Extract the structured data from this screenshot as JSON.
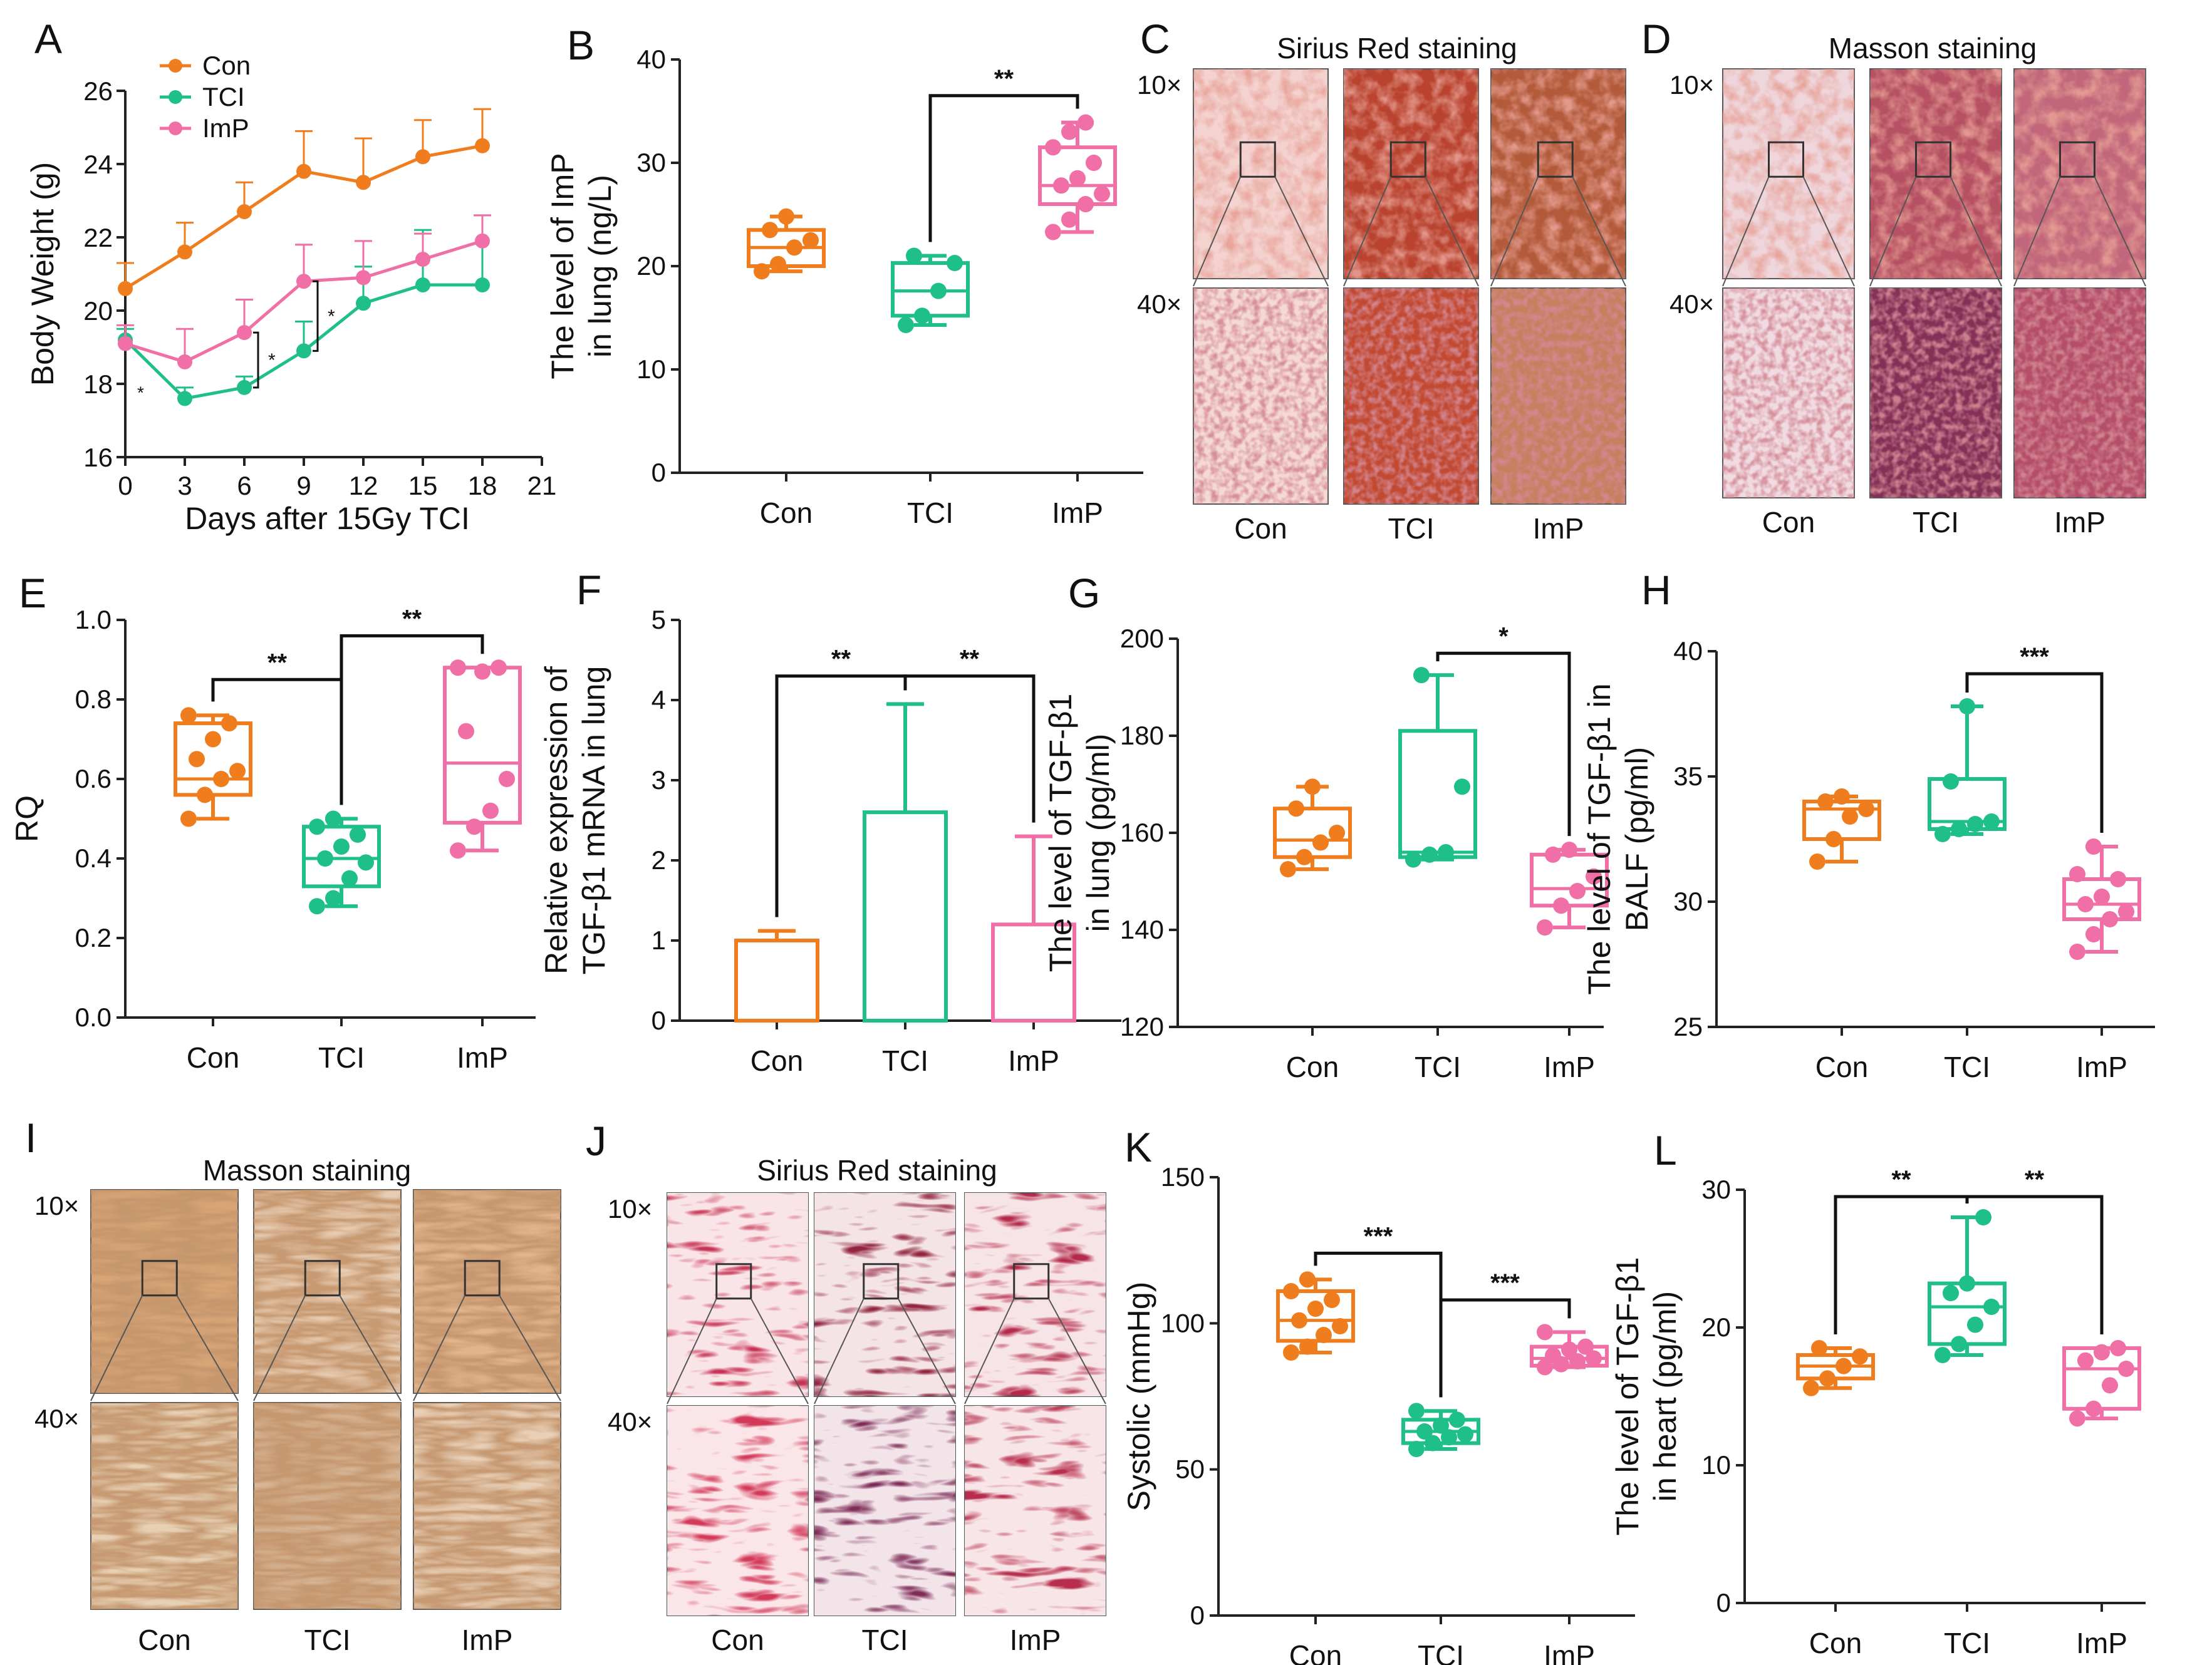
{
  "colors": {
    "Con": "#f07d1d",
    "TCI": "#1fbf89",
    "ImP": "#f06fa6",
    "axis": "#222222"
  },
  "chart_data": [
    {
      "panel": "A",
      "type": "line",
      "xlabel": "Days after 15Gy TCI",
      "ylabel": "Body Weight (g)",
      "xlim": [
        0,
        21
      ],
      "ylim": [
        16,
        26
      ],
      "xticks": [
        0,
        3,
        6,
        9,
        12,
        15,
        18,
        21
      ],
      "yticks": [
        16,
        18,
        20,
        22,
        24,
        26
      ],
      "legend": "top-left",
      "series": [
        {
          "name": "Con",
          "x": [
            0,
            3,
            6,
            9,
            12,
            15,
            18
          ],
          "y": [
            20.6,
            21.6,
            22.7,
            23.8,
            23.5,
            24.2,
            24.5
          ],
          "err": [
            0.7,
            0.8,
            0.8,
            1.1,
            1.2,
            1.0,
            1.0
          ]
        },
        {
          "name": "TCI",
          "x": [
            0,
            3,
            6,
            9,
            12,
            15,
            18
          ],
          "y": [
            19.2,
            17.6,
            17.9,
            18.9,
            20.2,
            20.7,
            20.7
          ],
          "err": [
            0.3,
            0.3,
            0.3,
            0.8,
            1.0,
            1.5,
            1.9
          ]
        },
        {
          "name": "ImP",
          "x": [
            0,
            3,
            6,
            9,
            12,
            15,
            18
          ],
          "y": [
            19.1,
            18.6,
            19.4,
            20.8,
            20.9,
            21.4,
            21.9
          ],
          "err": [
            0.5,
            0.9,
            0.9,
            1.0,
            1.0,
            0.7,
            0.7
          ]
        }
      ],
      "annotations": [
        "*",
        "*",
        "*",
        "*"
      ]
    },
    {
      "panel": "B",
      "type": "box",
      "ylabel_lines": [
        "The level of ImP",
        "in lung (ng/L)"
      ],
      "ylim": [
        0,
        40
      ],
      "yticks": [
        0,
        10,
        20,
        30,
        40
      ],
      "categories": [
        "Con",
        "TCI",
        "ImP"
      ],
      "boxes": [
        {
          "min": 19.5,
          "q1": 20.0,
          "median": 21.8,
          "q3": 23.5,
          "max": 24.8,
          "points": [
            19.5,
            20.2,
            21.8,
            22.5,
            23.5,
            24.8
          ]
        },
        {
          "min": 14.3,
          "q1": 15.2,
          "median": 17.6,
          "q3": 20.3,
          "max": 21.0,
          "points": [
            14.3,
            15.2,
            17.6,
            20.3,
            21.0
          ]
        },
        {
          "min": 23.3,
          "q1": 26.0,
          "median": 27.8,
          "q3": 31.5,
          "max": 33.9,
          "points": [
            23.3,
            24.5,
            26.0,
            27.0,
            27.8,
            28.5,
            30.0,
            31.5,
            33.0,
            33.9
          ]
        }
      ],
      "significance": [
        {
          "from": "TCI",
          "to": "ImP",
          "y": 36.5,
          "label": "**"
        }
      ]
    },
    {
      "panel": "E",
      "type": "box",
      "ylabel": "RQ",
      "ylim": [
        0,
        1.0
      ],
      "yticks": [
        0.0,
        0.2,
        0.4,
        0.6,
        0.8,
        1.0
      ],
      "yticklabels": [
        "0.0",
        "0.2",
        "0.4",
        "0.6",
        "0.8",
        "1.0"
      ],
      "categories": [
        "Con",
        "TCI",
        "ImP"
      ],
      "boxes": [
        {
          "min": 0.5,
          "q1": 0.56,
          "median": 0.6,
          "q3": 0.74,
          "max": 0.76,
          "points": [
            0.5,
            0.56,
            0.6,
            0.62,
            0.65,
            0.7,
            0.74,
            0.76
          ]
        },
        {
          "min": 0.28,
          "q1": 0.33,
          "median": 0.4,
          "q3": 0.48,
          "max": 0.5,
          "points": [
            0.28,
            0.3,
            0.35,
            0.39,
            0.4,
            0.43,
            0.46,
            0.48,
            0.5
          ]
        },
        {
          "min": 0.42,
          "q1": 0.49,
          "median": 0.64,
          "q3": 0.88,
          "max": 0.88,
          "points": [
            0.42,
            0.48,
            0.52,
            0.6,
            0.72,
            0.87,
            0.88,
            0.88
          ]
        }
      ],
      "significance": [
        {
          "from": "Con",
          "to": "TCI",
          "y": 0.85,
          "label": "**"
        },
        {
          "from": "TCI",
          "to": "ImP",
          "y": 0.96,
          "label": "**"
        }
      ]
    },
    {
      "panel": "F",
      "type": "bar",
      "ylabel_lines": [
        "Relative expression of",
        "TGF-β1 mRNA in lung"
      ],
      "ylim": [
        0,
        5
      ],
      "yticks": [
        0,
        1,
        2,
        3,
        4,
        5
      ],
      "categories": [
        "Con",
        "TCI",
        "ImP"
      ],
      "values": [
        1.0,
        2.6,
        1.2
      ],
      "err": [
        0.12,
        1.35,
        1.1
      ],
      "significance": [
        {
          "from": "Con",
          "to": "TCI",
          "y": 4.3,
          "label": "**"
        },
        {
          "from": "TCI",
          "to": "ImP",
          "y": 4.3,
          "label": "**"
        }
      ]
    },
    {
      "panel": "G",
      "type": "box",
      "ylabel_lines": [
        "The level of TGF-β1",
        "in lung (pg/ml)"
      ],
      "ylim": [
        120,
        200
      ],
      "yticks": [
        120,
        140,
        160,
        180,
        200
      ],
      "categories": [
        "Con",
        "TCI",
        "ImP"
      ],
      "boxes": [
        {
          "min": 152.5,
          "q1": 155,
          "median": 158.5,
          "q3": 165,
          "max": 169.5,
          "points": [
            152.5,
            155,
            158,
            160,
            165,
            169.5
          ]
        },
        {
          "min": 154.5,
          "q1": 155,
          "median": 156,
          "q3": 181,
          "max": 192.5,
          "points": [
            154.5,
            155.5,
            156,
            169.5,
            192.5
          ]
        },
        {
          "min": 140.5,
          "q1": 145,
          "median": 148.5,
          "q3": 155.5,
          "max": 156.5,
          "points": [
            140.5,
            145,
            148,
            151,
            155.5,
            156.5
          ]
        }
      ],
      "significance": [
        {
          "from": "TCI",
          "to": "ImP",
          "y": 197,
          "label": "*"
        }
      ]
    },
    {
      "panel": "H",
      "type": "box",
      "ylabel_lines": [
        "The level of TGF-β1 in",
        "BALF (pg/ml)"
      ],
      "ylim": [
        25,
        40
      ],
      "yticks": [
        25,
        30,
        35,
        40
      ],
      "categories": [
        "Con",
        "TCI",
        "ImP"
      ],
      "boxes": [
        {
          "min": 31.6,
          "q1": 32.5,
          "median": 33.7,
          "q3": 34.0,
          "max": 34.2,
          "points": [
            31.6,
            32.5,
            33.4,
            33.7,
            34.0,
            34.2
          ]
        },
        {
          "min": 32.7,
          "q1": 32.9,
          "median": 33.2,
          "q3": 34.9,
          "max": 37.8,
          "points": [
            32.7,
            32.9,
            33.1,
            33.2,
            34.8,
            37.8
          ]
        },
        {
          "min": 28.0,
          "q1": 29.3,
          "median": 29.9,
          "q3": 30.9,
          "max": 32.2,
          "points": [
            28.0,
            28.7,
            29.3,
            29.6,
            29.9,
            30.2,
            30.9,
            31.1,
            32.2
          ]
        }
      ],
      "significance": [
        {
          "from": "TCI",
          "to": "ImP",
          "y": 39.1,
          "label": "***"
        }
      ]
    },
    {
      "panel": "K",
      "type": "box",
      "ylabel": "Systolic (mmHg)",
      "ylim": [
        0,
        150
      ],
      "yticks": [
        0,
        50,
        100,
        150
      ],
      "categories": [
        "Con",
        "TCI",
        "ImP"
      ],
      "boxes": [
        {
          "min": 90,
          "q1": 94,
          "median": 101,
          "q3": 111,
          "max": 115,
          "points": [
            90,
            92,
            96,
            99,
            101,
            105,
            108,
            111,
            115
          ]
        },
        {
          "min": 57,
          "q1": 59,
          "median": 63,
          "q3": 67,
          "max": 70,
          "points": [
            57,
            59,
            61,
            62,
            63,
            65,
            67,
            70
          ]
        },
        {
          "min": 85,
          "q1": 85.5,
          "median": 88,
          "q3": 92,
          "max": 97,
          "points": [
            85,
            86,
            87,
            88,
            89,
            91,
            92,
            97
          ]
        }
      ],
      "significance": [
        {
          "from": "Con",
          "to": "TCI",
          "y": 124,
          "label": "***"
        },
        {
          "from": "TCI",
          "to": "ImP",
          "y": 108,
          "label": "***"
        }
      ]
    },
    {
      "panel": "L",
      "type": "box",
      "ylabel_lines": [
        "The level of TGF-β1",
        "in heart (pg/ml)"
      ],
      "ylim": [
        0,
        30
      ],
      "yticks": [
        0,
        10,
        20,
        30
      ],
      "categories": [
        "Con",
        "TCI",
        "ImP"
      ],
      "boxes": [
        {
          "min": 15.6,
          "q1": 16.3,
          "median": 17.2,
          "q3": 18.0,
          "max": 18.5,
          "points": [
            15.6,
            16.3,
            17.2,
            17.9,
            18.5
          ]
        },
        {
          "min": 18.0,
          "q1": 18.8,
          "median": 21.5,
          "q3": 23.2,
          "max": 28.0,
          "points": [
            18.0,
            18.8,
            20.2,
            21.5,
            22.5,
            23.2,
            28.0
          ]
        },
        {
          "min": 13.4,
          "q1": 14.1,
          "median": 17.0,
          "q3": 18.5,
          "max": 18.5,
          "points": [
            13.4,
            14.1,
            15.8,
            17.0,
            17.6,
            18.2,
            18.5
          ]
        }
      ],
      "significance": [
        {
          "from": "Con",
          "to": "TCI",
          "y": 29.5,
          "label": "**"
        },
        {
          "from": "TCI",
          "to": "ImP",
          "y": 29.5,
          "label": "**"
        }
      ]
    }
  ],
  "histology": [
    {
      "panel": "C",
      "title": "Sirius Red staining",
      "rows": [
        "10×",
        "40×"
      ],
      "columns": [
        "Con",
        "TCI",
        "ImP"
      ],
      "stain": "sirius-lung"
    },
    {
      "panel": "D",
      "title": "Masson staining",
      "rows": [
        "10×",
        "40×"
      ],
      "columns": [
        "Con",
        "TCI",
        "ImP"
      ],
      "stain": "masson-lung"
    },
    {
      "panel": "I",
      "title": "Masson staining",
      "rows": [
        "10×",
        "40×"
      ],
      "columns": [
        "Con",
        "TCI",
        "ImP"
      ],
      "stain": "masson-heart"
    },
    {
      "panel": "J",
      "title": "Sirius Red staining",
      "rows": [
        "10×",
        "40×"
      ],
      "columns": [
        "Con",
        "TCI",
        "ImP"
      ],
      "stain": "sirius-heart"
    }
  ]
}
